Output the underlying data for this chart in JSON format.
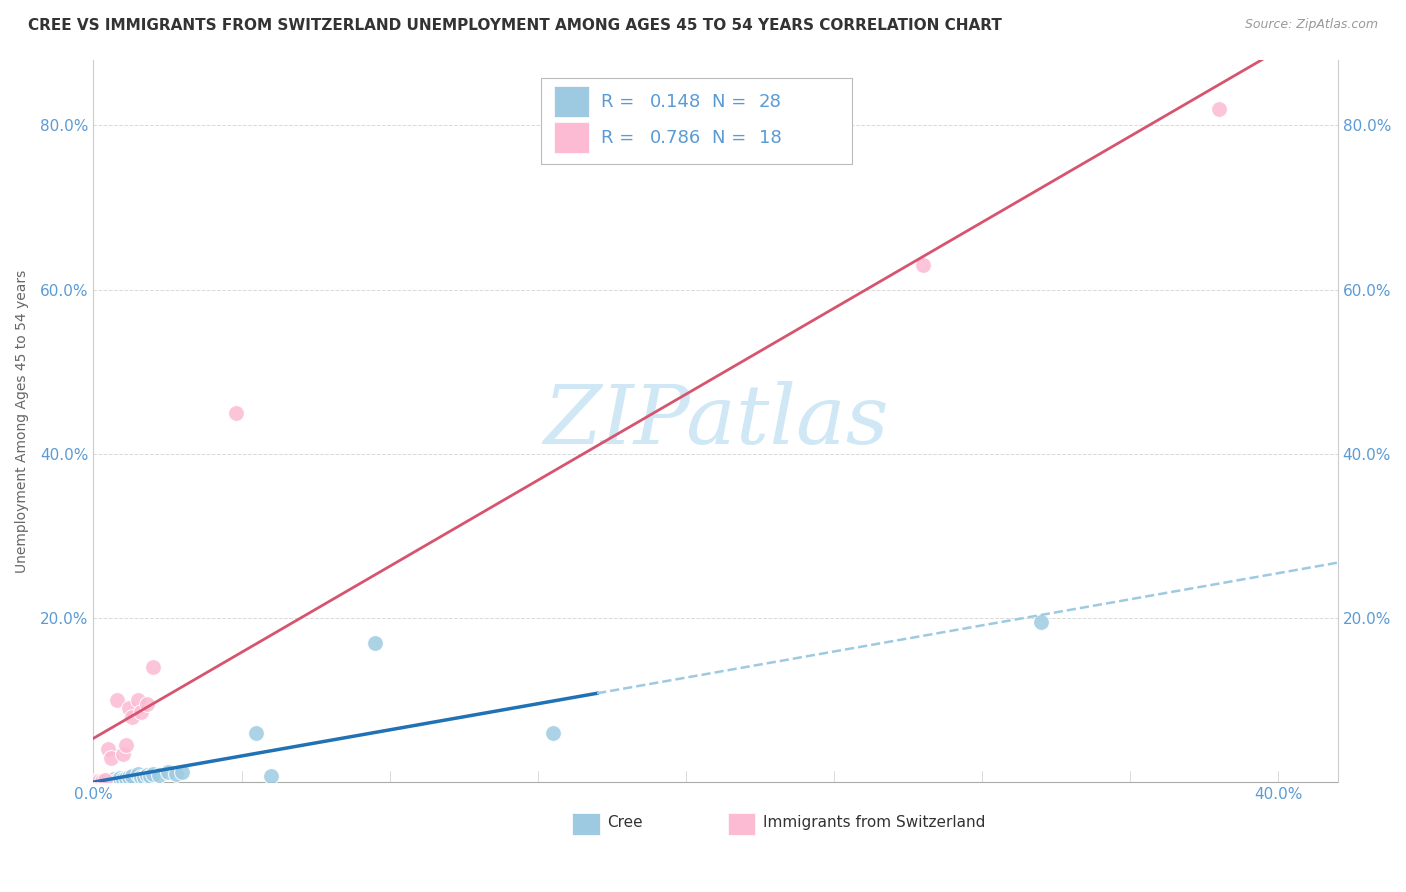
{
  "title": "CREE VS IMMIGRANTS FROM SWITZERLAND UNEMPLOYMENT AMONG AGES 45 TO 54 YEARS CORRELATION CHART",
  "source": "Source: ZipAtlas.com",
  "ylabel": "Unemployment Among Ages 45 to 54 years",
  "xlim": [
    0.0,
    0.42
  ],
  "ylim": [
    0.0,
    0.88
  ],
  "xticks": [
    0.0,
    0.05,
    0.1,
    0.15,
    0.2,
    0.25,
    0.3,
    0.35,
    0.4
  ],
  "yticks": [
    0.0,
    0.2,
    0.4,
    0.6,
    0.8
  ],
  "legend_text_color": "#5b9bd5",
  "cree_color": "#9ecae1",
  "swiss_color": "#fcbad3",
  "cree_line_color": "#2171b5",
  "swiss_line_color": "#d6546e",
  "cree_line_dashed_color": "#9ecae1",
  "watermark_color": "#d0e8f5",
  "background_color": "#ffffff",
  "grid_color": "#d9d9d9",
  "cree_points": [
    [
      0.001,
      0.001
    ],
    [
      0.002,
      0.002
    ],
    [
      0.003,
      0.001
    ],
    [
      0.004,
      0.003
    ],
    [
      0.005,
      0.002
    ],
    [
      0.006,
      0.003
    ],
    [
      0.007,
      0.004
    ],
    [
      0.008,
      0.003
    ],
    [
      0.009,
      0.005
    ],
    [
      0.01,
      0.004
    ],
    [
      0.011,
      0.005
    ],
    [
      0.012,
      0.006
    ],
    [
      0.013,
      0.008
    ],
    [
      0.015,
      0.01
    ],
    [
      0.016,
      0.006
    ],
    [
      0.017,
      0.007
    ],
    [
      0.018,
      0.009
    ],
    [
      0.019,
      0.008
    ],
    [
      0.02,
      0.01
    ],
    [
      0.022,
      0.009
    ],
    [
      0.025,
      0.012
    ],
    [
      0.028,
      0.01
    ],
    [
      0.03,
      0.012
    ],
    [
      0.055,
      0.06
    ],
    [
      0.06,
      0.008
    ],
    [
      0.095,
      0.17
    ],
    [
      0.155,
      0.06
    ],
    [
      0.32,
      0.195
    ]
  ],
  "swiss_points": [
    [
      0.001,
      0.001
    ],
    [
      0.002,
      0.002
    ],
    [
      0.003,
      0.002
    ],
    [
      0.004,
      0.003
    ],
    [
      0.005,
      0.04
    ],
    [
      0.006,
      0.03
    ],
    [
      0.008,
      0.1
    ],
    [
      0.01,
      0.035
    ],
    [
      0.011,
      0.045
    ],
    [
      0.012,
      0.09
    ],
    [
      0.013,
      0.08
    ],
    [
      0.015,
      0.1
    ],
    [
      0.016,
      0.085
    ],
    [
      0.018,
      0.095
    ],
    [
      0.02,
      0.14
    ],
    [
      0.048,
      0.45
    ],
    [
      0.28,
      0.63
    ],
    [
      0.38,
      0.82
    ]
  ],
  "cree_line_solid_end": 0.17,
  "title_fontsize": 11,
  "axis_label_fontsize": 10,
  "tick_fontsize": 11,
  "legend_fontsize": 13
}
